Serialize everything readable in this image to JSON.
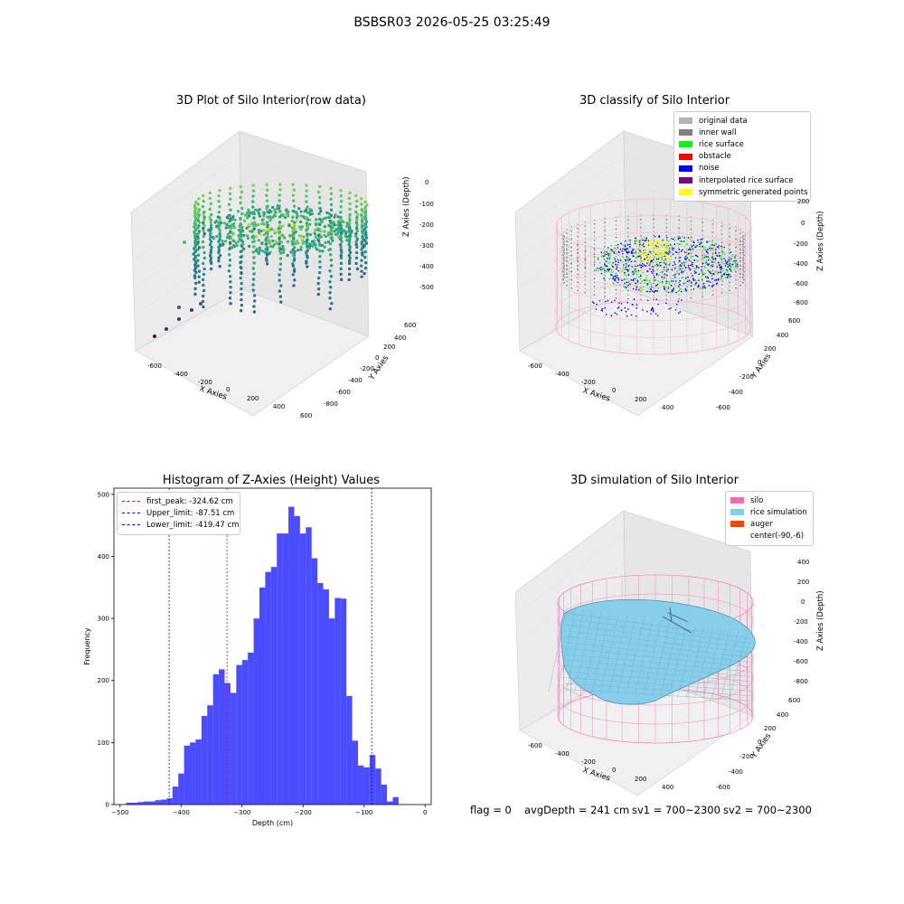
{
  "suptitle": "BSBSR03 2026-05-25 03:25:49",
  "panels": {
    "raw": {
      "title": "3D Plot of Silo Interior(row data)",
      "xlabel": "X Axies",
      "ylabel": "Y Axies",
      "zlabel": "Z Axies (Depth)",
      "xticks": [
        "-600",
        "-400",
        "-200",
        "0",
        "200",
        "400",
        "600"
      ],
      "yticks": [
        "600",
        "400",
        "200",
        "0",
        "-200",
        "-400",
        "-600",
        "-800"
      ],
      "zticks": [
        "0",
        "-100",
        "-200",
        "-300",
        "-400",
        "-500"
      ]
    },
    "classify": {
      "title": "3D classify of Silo Interior",
      "xlabel": "X Axies",
      "ylabel": "Y Axies",
      "zlabel": "Z Axies (Depth)",
      "xticks": [
        "-600",
        "-400",
        "-200",
        "0",
        "200",
        "400"
      ],
      "yticks": [
        "600",
        "400",
        "200",
        "0",
        "-200",
        "-400",
        "-600"
      ],
      "zticks": [
        "200",
        "0",
        "-200",
        "-400",
        "-600",
        "-800"
      ],
      "legend": [
        {
          "label": "original data",
          "color": "#b3b3b3"
        },
        {
          "label": "inner wall",
          "color": "#808080"
        },
        {
          "label": "rice surface",
          "color": "#00ff00"
        },
        {
          "label": "obstacle",
          "color": "#ff0000"
        },
        {
          "label": "noise",
          "color": "#0000ff"
        },
        {
          "label": "interpolated rice surface",
          "color": "#800080"
        },
        {
          "label": "symmetric generated points",
          "color": "#ffff00"
        }
      ]
    },
    "simulation": {
      "title": "3D simulation of Silo Interior",
      "xlabel": "X Axies",
      "ylabel": "Y Axies",
      "zlabel": "Z Axies (Depth)",
      "xticks": [
        "-600",
        "-400",
        "-200",
        "0",
        "200",
        "400"
      ],
      "yticks": [
        "600",
        "400",
        "200",
        "0",
        "-200",
        "-400",
        "-600"
      ],
      "zticks": [
        "400",
        "200",
        "0",
        "-200",
        "-400",
        "-600",
        "-800"
      ],
      "legend": [
        {
          "label": "silo",
          "color": "#ff69b4"
        },
        {
          "label": "rice simulation",
          "color": "#87ceeb"
        },
        {
          "label": "auger",
          "color": "#ff4500"
        },
        {
          "label": "center(-90,-6)",
          "color": ""
        }
      ]
    }
  },
  "status": {
    "flag": "flag = 0",
    "avg": "avgDepth = 241 cm",
    "sv1": "sv1 = 700~2300",
    "sv2": "sv2 = 700~2300"
  },
  "chart_data": {
    "type": "bar",
    "title": "Histogram of Z-Axies (Height) Values",
    "xlabel": "Depth (cm)",
    "ylabel": "Frequency",
    "xlim": [
      -510,
      10
    ],
    "ylim": [
      0,
      510
    ],
    "xticks": [
      -500,
      -400,
      -300,
      -200,
      -100,
      0
    ],
    "yticks": [
      0,
      100,
      200,
      300,
      400,
      500
    ],
    "bin_start": -490,
    "bin_width": 9.5,
    "color": "#0000ff",
    "values": [
      3,
      3,
      4,
      5,
      5,
      7,
      8,
      10,
      29,
      50,
      95,
      100,
      105,
      143,
      160,
      210,
      218,
      196,
      180,
      225,
      233,
      245,
      300,
      350,
      375,
      383,
      437,
      437,
      480,
      465,
      437,
      447,
      397,
      357,
      347,
      300,
      333,
      332,
      175,
      103,
      63,
      60,
      80,
      58,
      32,
      5,
      12
    ],
    "vlines": [
      {
        "label": "first_peak: -324.62 cm",
        "x": -324.62,
        "color": "#ff0000"
      },
      {
        "label": "Upper_limit: -87.51 cm",
        "x": -87.51,
        "color": "#0000ff"
      },
      {
        "label": "Lower_limit: -419.47 cm",
        "x": -419.47,
        "color": "#0000ff"
      }
    ]
  }
}
